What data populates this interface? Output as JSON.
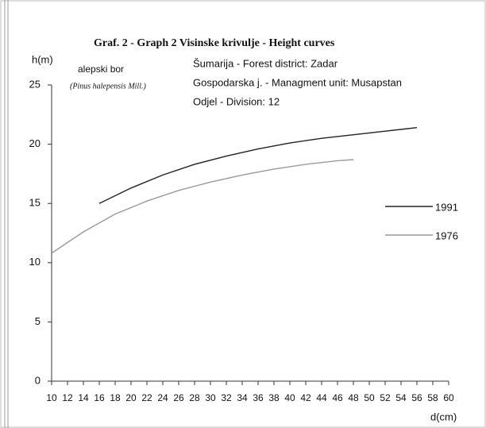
{
  "chart_data": {
    "type": "line",
    "title": "Graf. 2 - Graph 2  Visinske krivulje - Height curves",
    "annotations": [
      "Šumarija - Forest district: Zadar",
      "Gospodarska j. - Managment unit: Musapstan",
      "Odjel - Division: 12"
    ],
    "species": "alepski bor",
    "species_latin": "(Pinus halepensis Mill.)",
    "ylabel": "h(m)",
    "xlabel": "d(cm)",
    "xlim": [
      10,
      60
    ],
    "xticks": [
      10,
      12,
      14,
      16,
      18,
      20,
      22,
      24,
      26,
      28,
      30,
      32,
      34,
      36,
      38,
      40,
      42,
      44,
      46,
      48,
      50,
      52,
      54,
      56,
      58,
      60
    ],
    "ylim": [
      0,
      25
    ],
    "yticks": [
      0,
      5,
      10,
      15,
      20,
      25
    ],
    "series": [
      {
        "name": "1991",
        "color": "#222222",
        "x": [
          16,
          20,
          24,
          28,
          32,
          36,
          40,
          44,
          48,
          52,
          56
        ],
        "values": [
          15.0,
          16.3,
          17.4,
          18.3,
          19.0,
          19.6,
          20.1,
          20.5,
          20.8,
          21.1,
          21.4
        ]
      },
      {
        "name": "1976",
        "color": "#9a9a9a",
        "x": [
          10,
          14,
          18,
          22,
          26,
          30,
          34,
          38,
          42,
          46,
          48
        ],
        "values": [
          10.8,
          12.6,
          14.1,
          15.2,
          16.1,
          16.8,
          17.4,
          17.9,
          18.3,
          18.6,
          18.7
        ]
      }
    ]
  }
}
